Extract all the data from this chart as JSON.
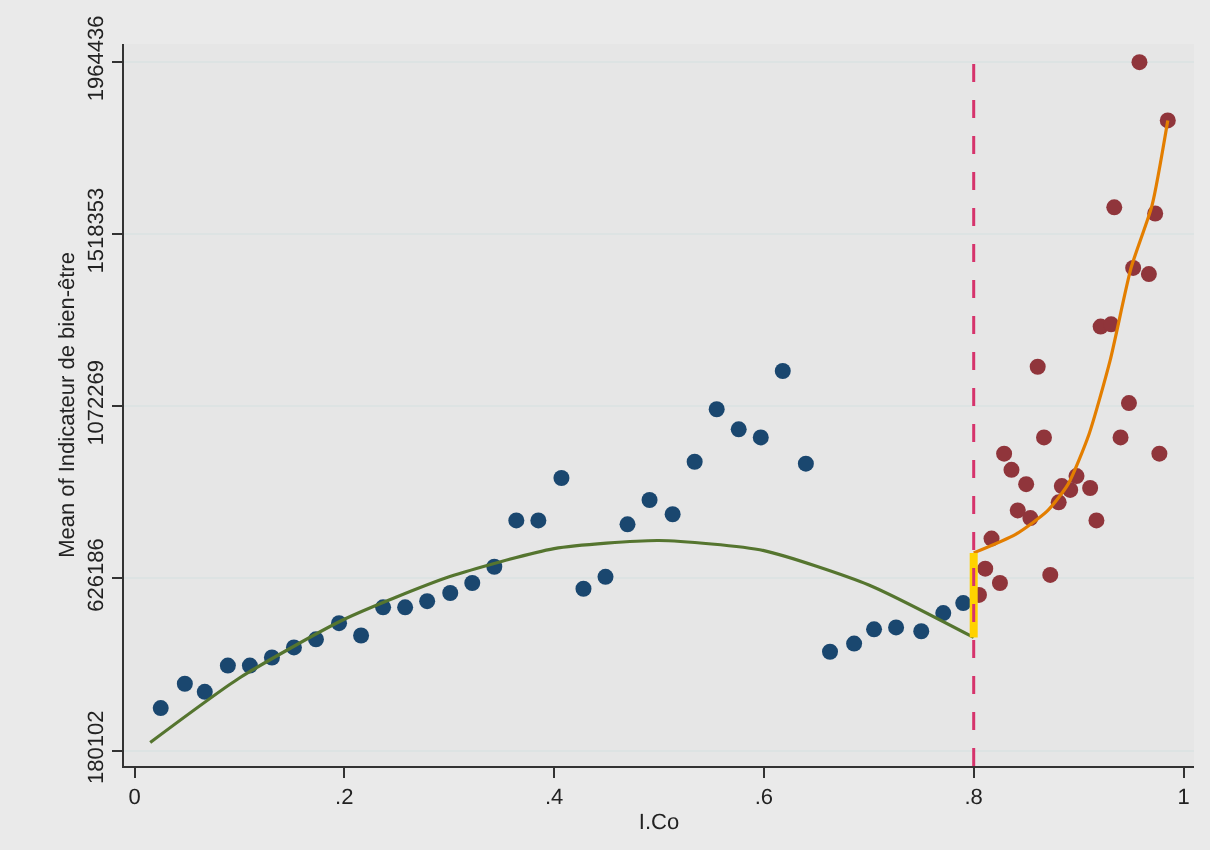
{
  "chart_data": {
    "type": "scatter",
    "xlabel": "I.Co",
    "ylabel": "Mean of Indicateur de bien-être",
    "xlim": [
      -0.01,
      1.01
    ],
    "xticks": [
      0,
      {
        "value": 0.2,
        "label": ".2"
      },
      {
        "value": 0.4,
        "label": ".4"
      },
      {
        "value": 0.6,
        "label": ".6"
      },
      {
        "value": 0.8,
        "label": ".8"
      },
      1
    ],
    "ylim": [
      140000,
      2010000
    ],
    "yticks": [
      180102,
      626186,
      1072269,
      1518353,
      1964436
    ],
    "grid": "y",
    "series": [
      {
        "marker": "circle",
        "color": "#1a476f",
        "x": [
          0.025,
          0.048,
          0.067,
          0.089,
          0.11,
          0.131,
          0.152,
          0.173,
          0.195,
          0.216,
          0.237,
          0.258,
          0.279,
          0.301,
          0.322,
          0.343,
          0.364,
          0.385,
          0.407,
          0.428,
          0.449,
          0.47,
          0.491,
          0.513,
          0.534,
          0.555,
          0.576,
          0.597,
          0.618,
          0.64,
          0.663,
          0.686,
          0.705,
          0.726,
          0.75,
          0.771,
          0.79
        ],
        "values": [
          290000,
          353000,
          332000,
          400000,
          400000,
          421000,
          447000,
          468000,
          510000,
          478000,
          551000,
          551000,
          567000,
          588000,
          614000,
          656000,
          776000,
          776000,
          886000,
          599000,
          630000,
          766000,
          829000,
          792000,
          928000,
          1064000,
          1012000,
          991000,
          1163000,
          923000,
          436000,
          457000,
          494000,
          499000,
          489000,
          536000,
          562000
        ]
      },
      {
        "marker": "circle",
        "color": "#90353b",
        "x": [
          0.805,
          0.811,
          0.825,
          0.817,
          0.829,
          0.836,
          0.842,
          0.85,
          0.854,
          0.861,
          0.867,
          0.873,
          0.881,
          0.884,
          0.892,
          0.898,
          0.911,
          0.917,
          0.921,
          0.931,
          0.934,
          0.94,
          0.948,
          0.952,
          0.958,
          0.967,
          0.973,
          0.977,
          0.985
        ],
        "values": [
          583000,
          651000,
          614000,
          729000,
          949000,
          907000,
          802000,
          870000,
          782000,
          1174000,
          991000,
          635000,
          823000,
          865000,
          855000,
          891000,
          860000,
          776000,
          1278000,
          1284000,
          1587000,
          991000,
          1080000,
          1430000,
          1963000,
          1414000,
          1571000,
          949000,
          1812000
        ]
      },
      {
        "type": "line",
        "marker": "none",
        "color": "#55752f",
        "x": [
          0.015,
          0.1,
          0.2,
          0.3,
          0.4,
          0.5,
          0.6,
          0.7,
          0.8
        ],
        "values": [
          201000,
          368000,
          520000,
          630000,
          703000,
          724000,
          698000,
          609000,
          473000
        ]
      },
      {
        "type": "line",
        "marker": "none",
        "color": "#e37e00",
        "x": [
          0.8,
          0.84,
          0.87,
          0.89,
          0.91,
          0.93,
          0.95,
          0.97,
          0.985
        ],
        "values": [
          692000,
          740000,
          800000,
          870000,
          1000000,
          1190000,
          1430000,
          1592000,
          1812000
        ]
      },
      {
        "type": "line",
        "marker": "none",
        "color": "#ffd200",
        "x": [
          0.8,
          0.8
        ],
        "values": [
          473000,
          692000
        ]
      }
    ],
    "ref_lines": [
      {
        "axis": "x",
        "value": 0.8,
        "color": "#d6336c",
        "line_style": "dashed"
      }
    ]
  }
}
